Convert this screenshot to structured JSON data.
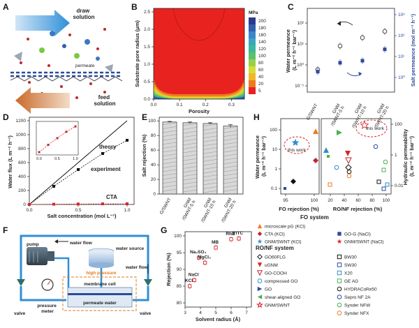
{
  "panels": {
    "a": {
      "label": "A",
      "draw_solution": "draw\nsolution",
      "permeate": "permeate",
      "feed_solution": "feed\nsolution"
    },
    "b": {
      "label": "B",
      "xlabel": "Porosity",
      "ylabel": "Substrate pore radius (μm)",
      "x_ticks": [
        "0.0",
        "0.1",
        "0.2",
        "0.3"
      ],
      "y_ticks": [
        "0.0",
        "0.5",
        "1.0",
        "1.5",
        "2.0",
        "2.5"
      ],
      "colorbar_title": "MPa",
      "colorbar_levels": [
        "200",
        "180",
        "160",
        "140",
        "120",
        "100",
        "80",
        "60",
        "40",
        "20",
        "5"
      ],
      "colorbar_colors": [
        "#2b3a8f",
        "#2f5fb0",
        "#3d86c8",
        "#3aa7c2",
        "#3cb89a",
        "#5cc070",
        "#98d04a",
        "#d6dd3a",
        "#f2b629",
        "#f07a22",
        "#e8231f"
      ]
    },
    "c": {
      "label": "C",
      "ylabel_left": "Water permeance\n(L m⁻² h⁻¹ bar⁻¹)",
      "ylabel_right": "Salt permeance (mol m⁻² h⁻¹)",
      "left_ticks": [
        "10⁻¹",
        "10⁰",
        "10¹",
        "10²"
      ],
      "right_ticks": [
        "10⁰",
        "10¹",
        "10²",
        "10³"
      ],
      "categories": [
        "G/SWNT",
        "GNM\n/SWNT-5 h",
        "GNM\n/SWNT-10 h",
        "GNM\n/SWNT-20 h"
      ]
    },
    "d": {
      "label": "D",
      "xlabel": "Salt concentration (mol L⁻¹)",
      "ylabel": "Water flux (L m⁻² h⁻¹)",
      "x_ticks": [
        "0.0",
        "0.5",
        "1.0"
      ],
      "y_ticks": [
        "0",
        "200",
        "400",
        "600",
        "800",
        "1000",
        "1200"
      ],
      "inset_x_ticks": [
        "0.0",
        "0.5",
        "1.0"
      ],
      "theory_label": "theory",
      "experiment_label": "experiment",
      "cta_label": "CTA"
    },
    "e": {
      "label": "E",
      "ylabel": "Salt rejection (%)",
      "y_ticks": [
        "0",
        "20",
        "40",
        "60",
        "80",
        "100"
      ],
      "categories": [
        "G/SWNT",
        "GNM\n/SWNT-5 h",
        "GNM\n/SWNT-10 h",
        "GNM\n/SWNT-20 h"
      ]
    },
    "f": {
      "label": "F",
      "pump": "pump",
      "water_flow_1": "water flow",
      "water_source": "water source",
      "water_flow_2": "water flow",
      "high_pressure": "high pressure",
      "membrane_cell": "membrane cell",
      "permeate_water": "permeate water",
      "valve_left": "valve",
      "valve_right": "valve",
      "pressure_meter": "pressure\nmeter"
    },
    "g": {
      "label": "G",
      "xlabel": "Solvent radius (Å)",
      "ylabel": "Rejection (%)",
      "x_ticks": [
        "3",
        "4",
        "5",
        "6",
        "7"
      ],
      "y_ticks": [
        "80",
        "85",
        "90",
        "95",
        "100"
      ]
    },
    "h": {
      "label": "H",
      "ylabel_left": "Water permeance\n(L m⁻² h⁻¹ bar⁻¹)",
      "ylabel_right": "Hydraulic permeability\n(L m⁻² h⁻¹ bar⁻¹)",
      "xlabel_left": "FO rejection (%)",
      "xlabel_right": "RO/NF rejection (%)",
      "left_x_ticks": [
        "95",
        "100"
      ],
      "right_x_ticks": [
        "20",
        "40",
        "60",
        "80",
        "100"
      ],
      "left_y_ticks": [
        "0.1",
        "1",
        "10",
        "100"
      ],
      "right_y_ticks": [
        "0.01",
        "1",
        "100"
      ],
      "this_work_1": "this work",
      "this_work_2": "this work"
    }
  },
  "legend": {
    "fo_title": "FO system",
    "fo_items": [
      {
        "label": "microscale pG (KCl)",
        "color": "#f07a22",
        "shape": "triangle-up"
      },
      {
        "label": "CTA (KCl)",
        "color": "#c0282d",
        "shape": "diamond"
      },
      {
        "label": "GNM/SWNT (KCl)",
        "color": "#2b8fce",
        "shape": "star"
      },
      {
        "label": "GO-G (NaCl)",
        "color": "#2c4a9c",
        "shape": "square"
      },
      {
        "label": "GNM/SWNT (NaCl)",
        "color": "#d7262b",
        "shape": "star"
      }
    ],
    "ro_title": "RO/NF system",
    "ro_items_left": [
      {
        "label": "GO60FLG",
        "color": "#111111",
        "shape": "diamond-open"
      },
      {
        "label": "uGNM",
        "color": "#d7262b",
        "shape": "triangle-down"
      },
      {
        "label": "GO-COOH",
        "color": "#c0282d",
        "shape": "triangle-down-open"
      },
      {
        "label": "compressed GO",
        "color": "#2b8fce",
        "shape": "circle-open"
      },
      {
        "label": "GO",
        "color": "#2c4a9c",
        "shape": "triangle-right"
      },
      {
        "label": "shear-aligned GO",
        "color": "#4caf50",
        "shape": "triangle-left"
      },
      {
        "label": "GNM/SWNT",
        "color": "#d7262b",
        "shape": "star-open"
      }
    ],
    "ro_items_right": [
      {
        "label": "BW30",
        "color": "#111111",
        "shape": "square-open"
      },
      {
        "label": "SW30",
        "color": "#2c4a9c",
        "shape": "square-open"
      },
      {
        "label": "X20",
        "color": "#2b8fce",
        "shape": "square-open"
      },
      {
        "label": "GE AG",
        "color": "#4caf50",
        "shape": "square-open"
      },
      {
        "label": "HYDRACoRe50",
        "color": "#111111",
        "shape": "circle-open"
      },
      {
        "label": "Sepro NF 2A",
        "color": "#2c4a9c",
        "shape": "circle-open"
      },
      {
        "label": "Synder NFW",
        "color": "#4caf50",
        "shape": "circle-open"
      },
      {
        "label": "Synder NFX",
        "color": "#f07a22",
        "shape": "circle-open"
      }
    ]
  },
  "chart_data": [
    {
      "panel": "C",
      "type": "scatter",
      "categories": [
        "G/SWNT",
        "GNM/SWNT-5 h",
        "GNM/SWNT-10 h",
        "GNM/SWNT-20 h"
      ],
      "series": [
        {
          "values": [
            0.6,
            8,
            20,
            40
          ],
          "color": "#444444",
          "marker": "circle-open"
        },
        {
          "values": [
            3,
            8,
            10,
            35
          ],
          "color": "#2c4a9c",
          "marker": "square"
        }
      ]
    },
    {
      "panel": "D",
      "type": "line",
      "x": [
        0.0,
        0.25,
        0.5,
        0.75,
        1.0
      ],
      "series": [
        {
          "name": "theory",
          "values": [
            0,
            300,
            600,
            900,
            1200
          ],
          "color": "#111111"
        },
        {
          "name": "experiment",
          "values": [
            0,
            260,
            500,
            730,
            920
          ],
          "color": "#111111"
        },
        {
          "name": "CTA",
          "values": [
            0,
            4,
            7,
            9,
            10
          ],
          "color": "#d7262b"
        }
      ],
      "inset": {
        "x": [
          0.0,
          0.25,
          0.5,
          0.75,
          1.0
        ],
        "values": [
          0,
          260,
          500,
          730,
          920
        ]
      }
    },
    {
      "panel": "E",
      "type": "bar",
      "categories": [
        "G/SWNT",
        "GNM/SWNT-5 h",
        "GNM/SWNT-10 h",
        "GNM/SWNT-20 h"
      ],
      "values": [
        98.5,
        97.5,
        96.5,
        93.0
      ],
      "errors": [
        0.8,
        1.0,
        1.0,
        1.8
      ],
      "ylim": [
        0,
        100
      ]
    },
    {
      "panel": "G",
      "type": "scatter",
      "points": [
        {
          "label": "KCl",
          "x": 3.3,
          "y": 85.0
        },
        {
          "label": "NaCl",
          "x": 3.6,
          "y": 86.8
        },
        {
          "label": "Na₂SO₄",
          "x": 3.9,
          "y": 93.5
        },
        {
          "label": "MgCl₂",
          "x": 4.3,
          "y": 92.0
        },
        {
          "label": "MB",
          "x": 5.0,
          "y": 96.5
        },
        {
          "label": "RhB",
          "x": 6.0,
          "y": 99.0
        },
        {
          "label": "FITC",
          "x": 6.5,
          "y": 99.2
        }
      ],
      "xlim": [
        3,
        7
      ],
      "ylim": [
        80,
        100
      ]
    }
  ]
}
